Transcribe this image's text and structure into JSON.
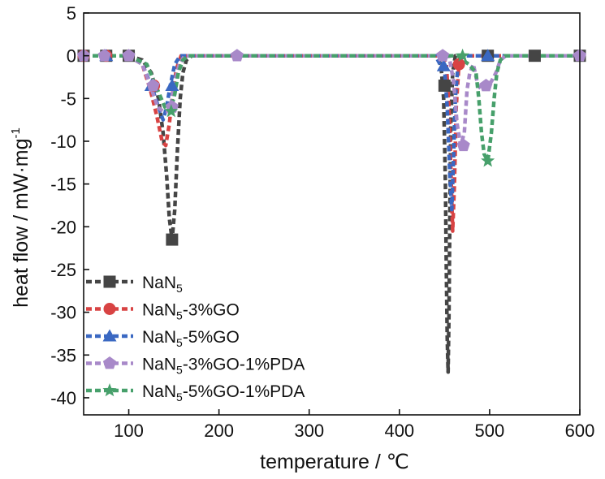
{
  "chart_data": {
    "type": "line",
    "xlabel": "temperature / ℃",
    "ylabel": "heat flow / mW·mg",
    "ylabel_sup": "-1",
    "xlim": [
      50,
      600
    ],
    "ylim": [
      -42,
      5
    ],
    "xticks": [
      100,
      200,
      300,
      400,
      500,
      600
    ],
    "yticks": [
      5,
      0,
      -5,
      -10,
      -15,
      -20,
      -25,
      -30,
      -35,
      -40
    ],
    "grid": false,
    "legend_position": "bottom-left",
    "series": [
      {
        "name": "NaN5",
        "name_base": "NaN",
        "name_sub": "5",
        "name_suffix": "",
        "color": "#454545",
        "marker": "square",
        "points": [
          [
            50,
            0
          ],
          [
            70,
            0
          ],
          [
            100,
            0
          ],
          [
            115,
            -0.5
          ],
          [
            125,
            -2
          ],
          [
            133,
            -5
          ],
          [
            138,
            -9
          ],
          [
            142,
            -14
          ],
          [
            145,
            -19
          ],
          [
            148,
            -21.5
          ],
          [
            151,
            -18
          ],
          [
            154,
            -11
          ],
          [
            157,
            -5
          ],
          [
            160,
            -2
          ],
          [
            164,
            -0.5
          ],
          [
            170,
            0
          ],
          [
            250,
            0
          ],
          [
            350,
            0
          ],
          [
            420,
            0
          ],
          [
            440,
            0
          ],
          [
            446,
            -1
          ],
          [
            449,
            -5
          ],
          [
            451,
            -15
          ],
          [
            452,
            -25
          ],
          [
            453,
            -33
          ],
          [
            454,
            -37
          ],
          [
            455,
            -30
          ],
          [
            456,
            -18
          ],
          [
            457,
            -8
          ],
          [
            459,
            -2
          ],
          [
            462,
            0
          ],
          [
            500,
            0
          ],
          [
            550,
            0
          ],
          [
            600,
            0
          ]
        ],
        "marker_points": [
          [
            50,
            0
          ],
          [
            75,
            0
          ],
          [
            100,
            0
          ],
          [
            148,
            -21.5
          ],
          [
            450,
            -3.5
          ],
          [
            498,
            0
          ],
          [
            550,
            0
          ],
          [
            600,
            0
          ]
        ]
      },
      {
        "name": "NaN5-3%GO",
        "name_base": "NaN",
        "name_sub": "5",
        "name_suffix": "-3%GO",
        "color": "#d84343",
        "marker": "circle",
        "points": [
          [
            50,
            0
          ],
          [
            100,
            0
          ],
          [
            115,
            -1
          ],
          [
            124,
            -4
          ],
          [
            131,
            -7
          ],
          [
            137,
            -10
          ],
          [
            141,
            -10.5
          ],
          [
            145,
            -8
          ],
          [
            149,
            -4
          ],
          [
            153,
            -1.5
          ],
          [
            158,
            0
          ],
          [
            200,
            0
          ],
          [
            300,
            0
          ],
          [
            420,
            0
          ],
          [
            448,
            0
          ],
          [
            452,
            -1
          ],
          [
            455,
            -6
          ],
          [
            457,
            -13
          ],
          [
            459,
            -20.5
          ],
          [
            461,
            -15
          ],
          [
            463,
            -6
          ],
          [
            466,
            -1
          ],
          [
            470,
            0
          ],
          [
            550,
            0
          ],
          [
            600,
            0
          ]
        ],
        "marker_points": [
          [
            50,
            0
          ],
          [
            75,
            0
          ],
          [
            128,
            -3.5
          ],
          [
            466,
            -1
          ]
        ]
      },
      {
        "name": "NaN5-5%GO",
        "name_base": "NaN",
        "name_sub": "5",
        "name_suffix": "-5%GO",
        "color": "#3a68c2",
        "marker": "triangle",
        "points": [
          [
            50,
            0
          ],
          [
            100,
            0
          ],
          [
            115,
            -1
          ],
          [
            125,
            -3.5
          ],
          [
            133,
            -6
          ],
          [
            138,
            -7.5
          ],
          [
            142,
            -6
          ],
          [
            146,
            -3.5
          ],
          [
            151,
            -1
          ],
          [
            157,
            0
          ],
          [
            250,
            0
          ],
          [
            350,
            0
          ],
          [
            440,
            0
          ],
          [
            446,
            -1.2
          ],
          [
            450,
            -1.5
          ],
          [
            453,
            -6
          ],
          [
            456,
            -14
          ],
          [
            458,
            -18
          ],
          [
            460,
            -12
          ],
          [
            462,
            -5
          ],
          [
            465,
            -1
          ],
          [
            470,
            0
          ],
          [
            500,
            0
          ],
          [
            550,
            0
          ],
          [
            600,
            0
          ]
        ],
        "marker_points": [
          [
            75,
            0
          ],
          [
            125,
            -3.5
          ],
          [
            148,
            -3.5
          ],
          [
            449,
            -1.2
          ],
          [
            498,
            0
          ]
        ]
      },
      {
        "name": "NaN5-3%GO-1%PDA",
        "name_base": "NaN",
        "name_sub": "5",
        "name_suffix": "-3%GO-1%PDA",
        "color": "#a889c9",
        "marker": "pentagon",
        "points": [
          [
            50,
            0
          ],
          [
            100,
            0
          ],
          [
            115,
            -1
          ],
          [
            124,
            -3.5
          ],
          [
            132,
            -6
          ],
          [
            138,
            -6.5
          ],
          [
            143,
            -6.5
          ],
          [
            147,
            -5.5
          ],
          [
            151,
            -3
          ],
          [
            156,
            -1
          ],
          [
            162,
            0
          ],
          [
            250,
            0
          ],
          [
            350,
            0
          ],
          [
            440,
            0
          ],
          [
            455,
            0
          ],
          [
            460,
            -3
          ],
          [
            464,
            -8
          ],
          [
            468,
            -10.5
          ],
          [
            472,
            -9
          ],
          [
            475,
            -4
          ],
          [
            478,
            -2
          ],
          [
            482,
            -1
          ],
          [
            487,
            -3.5
          ],
          [
            492,
            -4
          ],
          [
            497,
            -3.5
          ],
          [
            502,
            -3
          ],
          [
            507,
            -2
          ],
          [
            512,
            -0.5
          ],
          [
            518,
            0
          ],
          [
            600,
            0
          ]
        ],
        "marker_points": [
          [
            50,
            0
          ],
          [
            73,
            0
          ],
          [
            100,
            0
          ],
          [
            127,
            -3.5
          ],
          [
            148,
            -6
          ],
          [
            220,
            0
          ],
          [
            448,
            0
          ],
          [
            471,
            -10.5
          ],
          [
            496,
            -3.5
          ],
          [
            600,
            0
          ]
        ]
      },
      {
        "name": "NaN5-5%GO-1%PDA",
        "name_base": "NaN",
        "name_sub": "5",
        "name_suffix": "-5%GO-1%PDA",
        "color": "#47a06b",
        "marker": "star",
        "points": [
          [
            50,
            0
          ],
          [
            100,
            0
          ],
          [
            120,
            -1
          ],
          [
            132,
            -4
          ],
          [
            140,
            -6
          ],
          [
            146,
            -6.5
          ],
          [
            151,
            -4.5
          ],
          [
            155,
            -2
          ],
          [
            160,
            -0.5
          ],
          [
            166,
            0
          ],
          [
            250,
            0
          ],
          [
            350,
            0
          ],
          [
            450,
            0
          ],
          [
            465,
            0
          ],
          [
            470,
            -0.5
          ],
          [
            477,
            -1
          ],
          [
            485,
            -2
          ],
          [
            488,
            -5
          ],
          [
            491,
            -9
          ],
          [
            494,
            -11.5
          ],
          [
            498,
            -12.3
          ],
          [
            502,
            -9
          ],
          [
            505,
            -5
          ],
          [
            508,
            -2
          ],
          [
            512,
            -0.5
          ],
          [
            517,
            0
          ],
          [
            600,
            0
          ]
        ],
        "marker_points": [
          [
            147,
            -6.5
          ],
          [
            470,
            0
          ],
          [
            498,
            -12.3
          ]
        ]
      }
    ]
  }
}
